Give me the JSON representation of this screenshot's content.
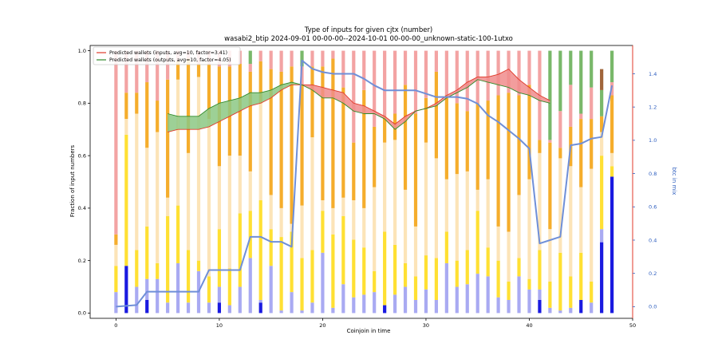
{
  "chart_data": {
    "type": "bar",
    "title": "Type of inputs for given cjtx (number)",
    "subtitle": "wasabi2_btip 2024-09-01 00-00-00--2024-10-01 00-00-00_unknown-static-100-1utxo",
    "xlabel": "Coinjoin in time",
    "ylabel": "Fraction of input numbers",
    "y2label": "btc in mix",
    "xlim": [
      -2.5,
      50
    ],
    "ylim": [
      -0.02,
      1.02
    ],
    "y2lim": [
      -0.07,
      1.57
    ],
    "x_ticks": [
      0,
      10,
      20,
      30,
      40,
      50
    ],
    "y_ticks": [
      0.0,
      0.2,
      0.4,
      0.6,
      0.8,
      1.0
    ],
    "y2_ticks": [
      0.0,
      0.2,
      0.4,
      0.6,
      0.8,
      1.0,
      1.2,
      1.4
    ],
    "grid": false,
    "legend_position": "top-left",
    "colors": {
      "layer1": "#1a1ae0",
      "layer2": "#a9aaf2",
      "layer3": "#ffe033",
      "layer4": "#fce4b8",
      "layer5": "#f5ad2c",
      "layer6": "#f3a3a3",
      "layer7": "#79b86a",
      "layer8": "#a0653a",
      "inputs_line": "#e03a2a",
      "outputs_line": "#2f8a2a",
      "btc_line": "#6f8fd8",
      "axis2": "#3060c0"
    },
    "stack_layers": [
      "layer1",
      "layer2",
      "layer3",
      "layer4",
      "layer5",
      "layer6",
      "layer7",
      "layer8"
    ],
    "bars": [
      [
        0.0,
        0.08,
        0.1,
        0.08,
        0.04,
        0.7,
        0.0,
        0.0
      ],
      [
        0.18,
        0.0,
        0.5,
        0.06,
        0.1,
        0.16,
        0.0,
        0.0
      ],
      [
        0.0,
        0.1,
        0.14,
        0.52,
        0.08,
        0.16,
        0.0,
        0.0
      ],
      [
        0.05,
        0.08,
        0.2,
        0.3,
        0.25,
        0.12,
        0.0,
        0.0
      ],
      [
        0.0,
        0.13,
        0.06,
        0.5,
        0.12,
        0.19,
        0.0,
        0.0
      ],
      [
        0.0,
        0.04,
        0.33,
        0.07,
        0.45,
        0.11,
        0.0,
        0.0
      ],
      [
        0.0,
        0.19,
        0.22,
        0.48,
        0.07,
        0.04,
        0.0,
        0.0
      ],
      [
        0.0,
        0.04,
        0.2,
        0.37,
        0.36,
        0.03,
        0.0,
        0.0
      ],
      [
        0.0,
        0.16,
        0.04,
        0.7,
        0.05,
        0.05,
        0.0,
        0.0
      ],
      [
        0.0,
        0.04,
        0.1,
        0.6,
        0.21,
        0.05,
        0.0,
        0.0
      ],
      [
        0.04,
        0.06,
        0.22,
        0.24,
        0.38,
        0.06,
        0.0,
        0.0
      ],
      [
        0.0,
        0.03,
        0.14,
        0.43,
        0.34,
        0.06,
        0.0,
        0.0
      ],
      [
        0.0,
        0.1,
        0.28,
        0.22,
        0.35,
        0.05,
        0.0,
        0.0
      ],
      [
        0.0,
        0.21,
        0.18,
        0.15,
        0.38,
        0.03,
        0.05,
        0.0
      ],
      [
        0.04,
        0.01,
        0.38,
        0.37,
        0.16,
        0.04,
        0.0,
        0.0
      ],
      [
        0.0,
        0.18,
        0.14,
        0.13,
        0.48,
        0.07,
        0.0,
        0.0
      ],
      [
        0.0,
        0.01,
        0.28,
        0.11,
        0.52,
        0.08,
        0.0,
        0.0
      ],
      [
        0.0,
        0.08,
        0.23,
        0.03,
        0.6,
        0.06,
        0.0,
        0.0
      ],
      [
        0.0,
        0.01,
        0.2,
        0.2,
        0.46,
        0.07,
        0.06,
        0.0
      ],
      [
        0.0,
        0.04,
        0.2,
        0.43,
        0.27,
        0.06,
        0.0,
        0.0
      ],
      [
        0.0,
        0.23,
        0.16,
        0.04,
        0.51,
        0.06,
        0.0,
        0.0
      ],
      [
        0.0,
        0.02,
        0.28,
        0.1,
        0.57,
        0.03,
        0.0,
        0.0
      ],
      [
        0.0,
        0.11,
        0.26,
        0.07,
        0.42,
        0.14,
        0.0,
        0.0
      ],
      [
        0.0,
        0.06,
        0.22,
        0.15,
        0.22,
        0.35,
        0.0,
        0.0
      ],
      [
        0.0,
        0.07,
        0.18,
        0.15,
        0.45,
        0.15,
        0.0,
        0.0
      ],
      [
        0.0,
        0.08,
        0.08,
        0.32,
        0.23,
        0.29,
        0.0,
        0.0
      ],
      [
        0.03,
        0.0,
        0.28,
        0.34,
        0.1,
        0.25,
        0.0,
        0.0
      ],
      [
        0.0,
        0.07,
        0.19,
        0.4,
        0.1,
        0.24,
        0.0,
        0.0
      ],
      [
        0.0,
        0.1,
        0.09,
        0.28,
        0.4,
        0.13,
        0.0,
        0.0
      ],
      [
        0.0,
        0.05,
        0.09,
        0.19,
        0.43,
        0.24,
        0.0,
        0.0
      ],
      [
        0.0,
        0.09,
        0.13,
        0.43,
        0.17,
        0.18,
        0.0,
        0.0
      ],
      [
        0.0,
        0.05,
        0.16,
        0.38,
        0.33,
        0.08,
        0.0,
        0.0
      ],
      [
        0.0,
        0.19,
        0.12,
        0.2,
        0.32,
        0.17,
        0.0,
        0.0
      ],
      [
        0.0,
        0.1,
        0.1,
        0.33,
        0.27,
        0.2,
        0.0,
        0.0
      ],
      [
        0.0,
        0.11,
        0.13,
        0.3,
        0.23,
        0.23,
        0.0,
        0.0
      ],
      [
        0.0,
        0.15,
        0.24,
        0.08,
        0.33,
        0.2,
        0.0,
        0.0
      ],
      [
        0.0,
        0.14,
        0.11,
        0.26,
        0.3,
        0.19,
        0.0,
        0.0
      ],
      [
        0.0,
        0.06,
        0.14,
        0.13,
        0.5,
        0.17,
        0.0,
        0.0
      ],
      [
        0.0,
        0.05,
        0.07,
        0.19,
        0.53,
        0.16,
        0.0,
        0.0
      ],
      [
        0.0,
        0.14,
        0.07,
        0.24,
        0.38,
        0.17,
        0.0,
        0.0
      ],
      [
        0.0,
        0.09,
        0.04,
        0.38,
        0.36,
        0.13,
        0.0,
        0.0
      ],
      [
        0.05,
        0.04,
        0.15,
        0.37,
        0.05,
        0.34,
        0.0,
        0.0
      ],
      [
        0.0,
        0.02,
        0.1,
        0.2,
        0.33,
        0.01,
        0.34,
        0.0
      ],
      [
        0.0,
        0.01,
        0.22,
        0.36,
        0.04,
        0.14,
        0.23,
        0.0
      ],
      [
        0.0,
        0.02,
        0.12,
        0.42,
        0.15,
        0.16,
        0.13,
        0.0
      ],
      [
        0.05,
        0.0,
        0.18,
        0.25,
        0.26,
        0.02,
        0.24,
        0.0
      ],
      [
        0.0,
        0.04,
        0.08,
        0.43,
        0.19,
        0.12,
        0.14,
        0.0
      ],
      [
        0.27,
        0.05,
        0.28,
        0.09,
        0.06,
        0.0,
        0.1,
        0.08
      ],
      [
        0.52,
        0.0,
        0.04,
        0.05,
        0.22,
        0.05,
        0.12,
        0.0
      ]
    ],
    "series": [
      {
        "name": "Predicted wallets (inputs, avg=10, factor=3.41)",
        "x": [
          5,
          6,
          7,
          8,
          9,
          10,
          11,
          12,
          13,
          14,
          15,
          16,
          17,
          18,
          19,
          20,
          21,
          22,
          23,
          24,
          25,
          26,
          27,
          28,
          29,
          30,
          31,
          32,
          33,
          34,
          35,
          36,
          37,
          38,
          39,
          40,
          41,
          42
        ],
        "values": [
          0.69,
          0.7,
          0.7,
          0.7,
          0.71,
          0.73,
          0.75,
          0.77,
          0.79,
          0.8,
          0.82,
          0.85,
          0.87,
          0.87,
          0.87,
          0.86,
          0.85,
          0.84,
          0.8,
          0.79,
          0.77,
          0.75,
          0.72,
          0.75,
          0.77,
          0.78,
          0.8,
          0.83,
          0.85,
          0.88,
          0.9,
          0.9,
          0.91,
          0.93,
          0.89,
          0.86,
          0.83,
          0.81
        ]
      },
      {
        "name": "Predicted wallets (outputs, avg=10, factor=4.05)",
        "x": [
          5,
          6,
          7,
          8,
          9,
          10,
          11,
          12,
          13,
          14,
          15,
          16,
          17,
          18,
          19,
          20,
          21,
          22,
          23,
          24,
          25,
          26,
          27,
          28,
          29,
          30,
          31,
          32,
          33,
          34,
          35,
          36,
          37,
          38,
          39,
          40,
          41,
          42
        ],
        "values": [
          0.76,
          0.75,
          0.75,
          0.75,
          0.78,
          0.8,
          0.81,
          0.82,
          0.84,
          0.84,
          0.85,
          0.87,
          0.88,
          0.87,
          0.85,
          0.82,
          0.82,
          0.8,
          0.77,
          0.76,
          0.76,
          0.74,
          0.7,
          0.73,
          0.77,
          0.78,
          0.79,
          0.82,
          0.84,
          0.86,
          0.89,
          0.88,
          0.87,
          0.86,
          0.84,
          0.83,
          0.81,
          0.8
        ]
      },
      {
        "name": "btc in mix",
        "axis": "y2",
        "x": [
          0,
          2,
          3,
          4,
          5,
          6,
          7,
          8,
          9,
          10,
          11,
          12,
          13,
          14,
          15,
          16,
          17,
          18,
          19,
          20,
          21,
          22,
          23,
          24,
          25,
          26,
          27,
          28,
          29,
          30,
          31,
          32,
          33,
          34,
          35,
          36,
          37,
          38,
          39,
          40,
          41,
          42,
          43,
          44,
          45,
          46,
          47,
          48
        ],
        "values": [
          0.0,
          0.01,
          0.09,
          0.09,
          0.09,
          0.09,
          0.09,
          0.09,
          0.22,
          0.22,
          0.22,
          0.22,
          0.42,
          0.42,
          0.39,
          0.39,
          0.36,
          1.48,
          1.43,
          1.41,
          1.4,
          1.4,
          1.4,
          1.37,
          1.33,
          1.3,
          1.3,
          1.3,
          1.3,
          1.28,
          1.26,
          1.26,
          1.26,
          1.25,
          1.22,
          1.15,
          1.11,
          1.06,
          1.01,
          0.95,
          0.38,
          0.4,
          0.42,
          0.97,
          0.98,
          1.01,
          1.02,
          1.33
        ]
      }
    ]
  }
}
